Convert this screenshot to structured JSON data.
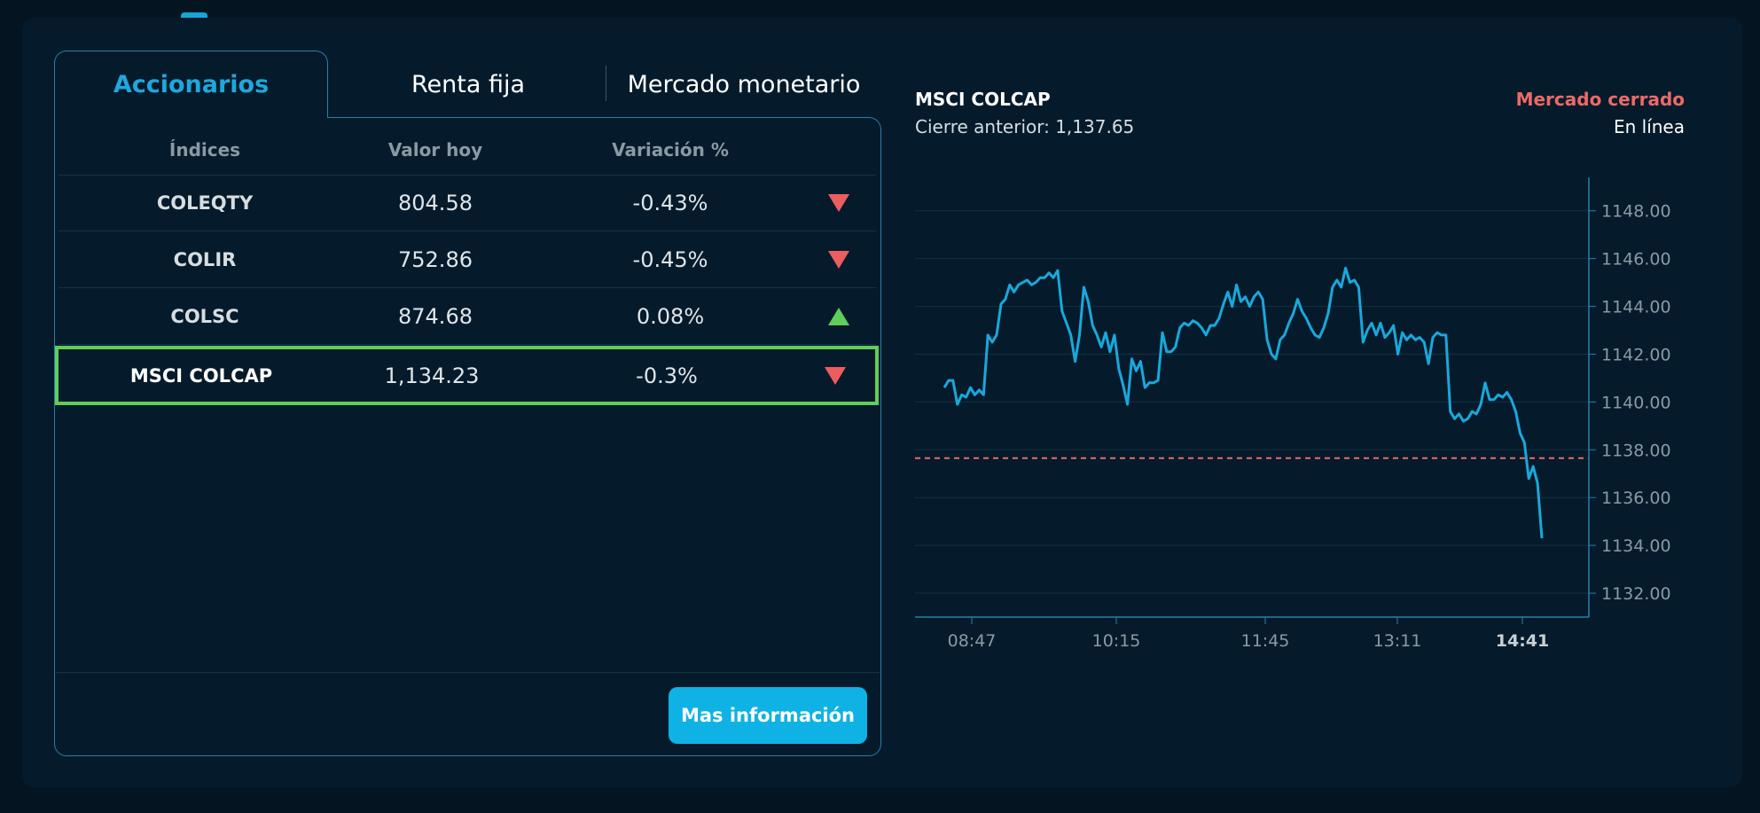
{
  "tabs": {
    "active": "Accionarios",
    "renta": "Renta fija",
    "mercado": "Mercado monetario"
  },
  "table": {
    "headers": {
      "name": "Índices",
      "value": "Valor hoy",
      "change": "Variación %"
    },
    "rows": [
      {
        "name": "COLEQTY",
        "value": "804.58",
        "change": "-0.43%",
        "trend": "down"
      },
      {
        "name": "COLIR",
        "value": "752.86",
        "change": "-0.45%",
        "trend": "down"
      },
      {
        "name": "COLSC",
        "value": "874.68",
        "change": "0.08%",
        "trend": "up"
      },
      {
        "name": "MSCI COLCAP",
        "value": "1,134.23",
        "change": "-0.3%",
        "trend": "down"
      }
    ]
  },
  "button": {
    "more_info": "Mas información"
  },
  "colors": {
    "accent": "#1fa7dc",
    "down": "#ec5e5e",
    "up": "#5fcf5a",
    "line": "#19a8dc",
    "reference": "#ec6a66"
  },
  "chart_header": {
    "title": "MSCI COLCAP",
    "previous_close": "Cierre anterior: 1,137.65",
    "status": "Mercado cerrado",
    "connection": "En línea"
  },
  "chart_data": {
    "type": "line",
    "title": "MSCI COLCAP",
    "xlabel": "",
    "ylabel": "",
    "ylim": [
      1131,
      1149.4
    ],
    "y_ticks": [
      1132,
      1134,
      1136,
      1138,
      1140,
      1142,
      1144,
      1146,
      1148
    ],
    "y_tick_labels": [
      "1132.00",
      "1134.00",
      "1136.00",
      "1138.00",
      "1140.00",
      "1142.00",
      "1144.00",
      "1146.00",
      "1148.00"
    ],
    "x_ticks": [
      "08:47",
      "10:15",
      "11:45",
      "13:11",
      "14:41"
    ],
    "x_tick_bold": [
      false,
      false,
      false,
      false,
      true
    ],
    "reference_line": {
      "value": 1137.65,
      "style": "dashed"
    },
    "grid": true,
    "series": [
      {
        "values": [
          1140.6,
          1140.9,
          1140.9,
          1139.9,
          1140.3,
          1140.2,
          1140.6,
          1140.3,
          1140.5,
          1140.3,
          1142.8,
          1142.5,
          1142.8,
          1144.1,
          1144.3,
          1144.9,
          1144.6,
          1144.9,
          1145.0,
          1145.1,
          1144.9,
          1145.0,
          1145.2,
          1145.2,
          1145.4,
          1145.2,
          1145.5,
          1143.8,
          1143.3,
          1142.8,
          1141.7,
          1142.8,
          1144.8,
          1144.2,
          1143.2,
          1142.8,
          1142.3,
          1142.9,
          1142.1,
          1142.8,
          1141.4,
          1140.7,
          1139.9,
          1141.8,
          1141.3,
          1141.7,
          1140.6,
          1140.8,
          1140.8,
          1140.9,
          1142.9,
          1142.1,
          1142.1,
          1142.3,
          1143.1,
          1143.3,
          1143.2,
          1143.4,
          1143.3,
          1143.1,
          1142.8,
          1143.2,
          1143.2,
          1143.5,
          1144.1,
          1144.6,
          1144.0,
          1144.9,
          1144.2,
          1144.4,
          1144.0,
          1144.4,
          1144.6,
          1144.3,
          1142.6,
          1142.0,
          1141.8,
          1142.6,
          1142.8,
          1143.3,
          1143.7,
          1144.3,
          1143.8,
          1143.5,
          1143.1,
          1142.8,
          1142.7,
          1143.1,
          1143.7,
          1144.8,
          1145.1,
          1144.8,
          1145.6,
          1145.0,
          1145.1,
          1144.8,
          1142.5,
          1143.0,
          1143.3,
          1142.8,
          1143.3,
          1142.7,
          1142.9,
          1143.2,
          1142.0,
          1142.9,
          1142.6,
          1142.8,
          1142.6,
          1142.7,
          1142.5,
          1141.6,
          1142.7,
          1142.9,
          1142.8,
          1142.8,
          1139.6,
          1139.3,
          1139.5,
          1139.2,
          1139.3,
          1139.6,
          1139.5,
          1139.9,
          1140.8,
          1140.1,
          1140.1,
          1140.3,
          1140.2,
          1140.4,
          1140.1,
          1139.6,
          1138.7,
          1138.3,
          1136.8,
          1137.3,
          1136.6,
          1134.3
        ]
      }
    ]
  }
}
